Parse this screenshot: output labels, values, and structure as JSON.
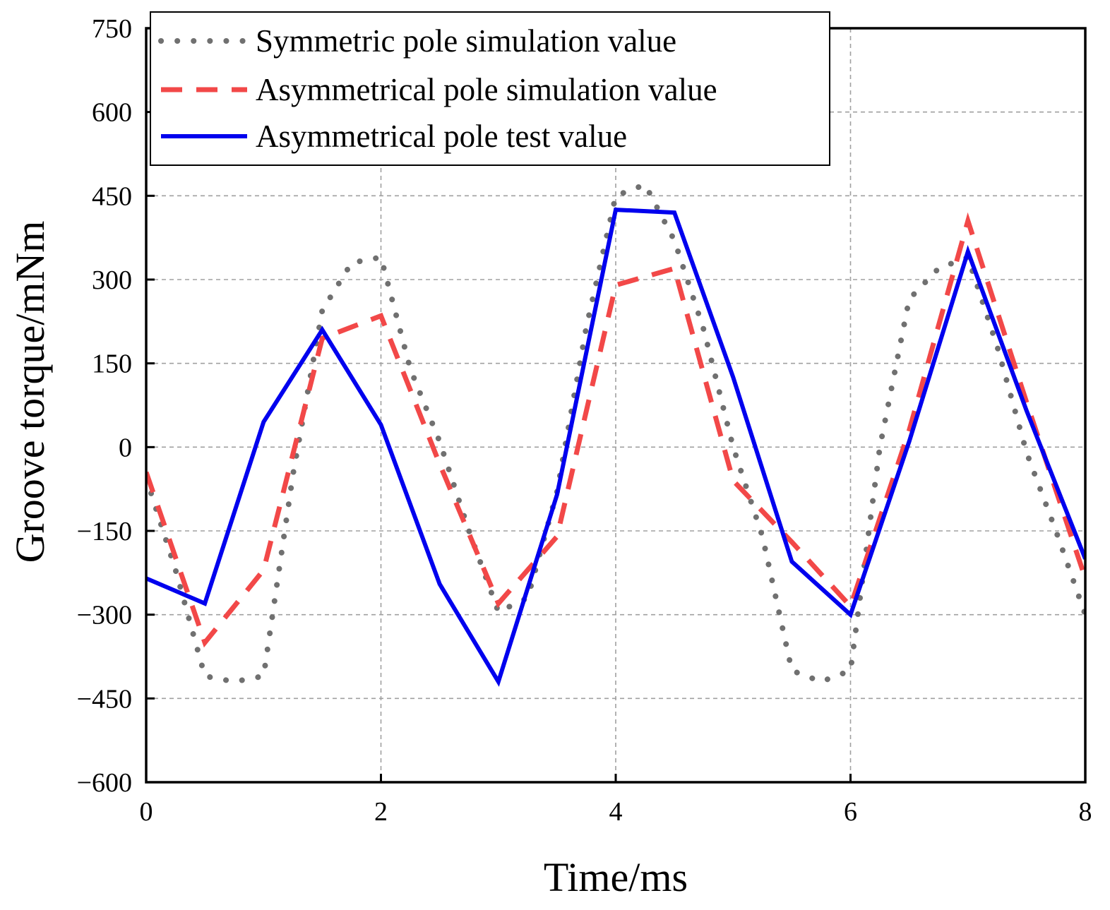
{
  "chart_data": {
    "type": "line",
    "title": "",
    "xlabel": "Time/ms",
    "ylabel": "Groove torque/mNm",
    "xlim": [
      0,
      8
    ],
    "ylim": [
      -600,
      750
    ],
    "xticks": [
      0,
      2,
      4,
      6,
      8
    ],
    "xtick_labels": [
      "0",
      "2",
      "4",
      "6",
      "8"
    ],
    "yticks": [
      -600,
      -450,
      -300,
      -150,
      0,
      150,
      300,
      450,
      600,
      750
    ],
    "ytick_labels": [
      "−600",
      "−450",
      "−300",
      "−150",
      "0",
      "150",
      "300",
      "450",
      "600",
      "750"
    ],
    "grid": true,
    "legend_position": "top-left",
    "series": [
      {
        "name": "Symmetric pole simulation value",
        "color": "#707070",
        "style": "dotted",
        "x": [
          0,
          0.25,
          0.5,
          0.75,
          1.0,
          1.25,
          1.5,
          1.75,
          2.0,
          2.25,
          2.5,
          2.75,
          3.0,
          3.25,
          3.5,
          3.75,
          4.0,
          4.25,
          4.5,
          4.75,
          5.0,
          5.25,
          5.5,
          5.75,
          6.0,
          6.25,
          6.5,
          6.75,
          7.0,
          7.25,
          7.5,
          7.75,
          8.0
        ],
        "y": [
          -55,
          -220,
          -410,
          -420,
          -410,
          -50,
          245,
          330,
          340,
          140,
          10,
          -150,
          -295,
          -270,
          -80,
          215,
          450,
          470,
          370,
          210,
          0,
          -160,
          -400,
          -420,
          -400,
          0,
          265,
          320,
          340,
          180,
          -10,
          -150,
          -300
        ]
      },
      {
        "name": "Asymmetrical pole simulation value",
        "color": "#f24848",
        "style": "dashed",
        "x": [
          0,
          0.5,
          1.0,
          1.5,
          2.0,
          2.5,
          3.0,
          3.5,
          4.0,
          4.5,
          5.0,
          5.5,
          6.0,
          6.5,
          7.0,
          7.5,
          8.0
        ],
        "y": [
          -45,
          -350,
          -220,
          195,
          235,
          -30,
          -280,
          -160,
          290,
          320,
          -60,
          -170,
          -285,
          30,
          405,
          80,
          -235
        ]
      },
      {
        "name": "Asymmetrical pole test value",
        "color": "#0000ee",
        "style": "solid",
        "x": [
          0,
          0.5,
          1.0,
          1.5,
          2.0,
          2.5,
          3.0,
          3.5,
          4.0,
          4.5,
          5.0,
          5.5,
          6.0,
          6.5,
          7.0,
          7.5,
          8.0
        ],
        "y": [
          -235,
          -280,
          45,
          210,
          40,
          -245,
          -420,
          -85,
          425,
          420,
          125,
          -205,
          -300,
          10,
          350,
          65,
          -200
        ]
      }
    ]
  }
}
